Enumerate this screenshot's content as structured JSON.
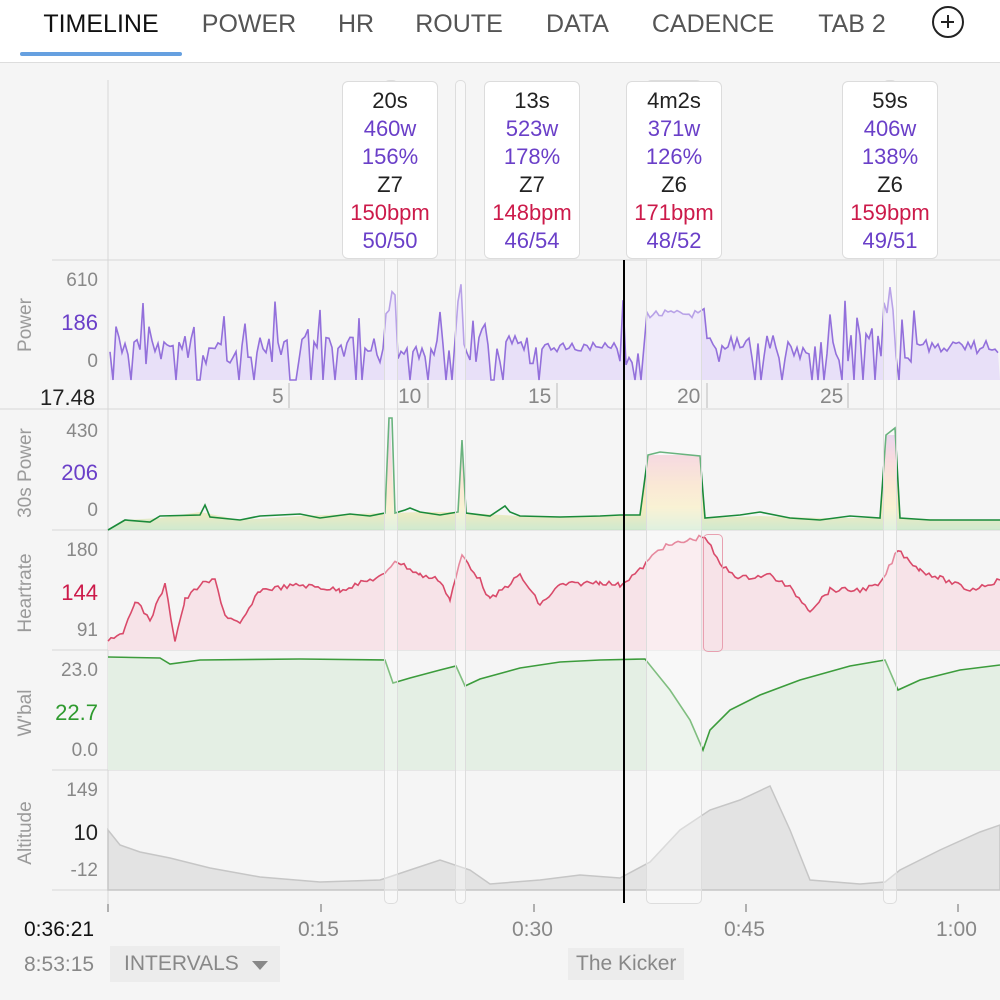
{
  "tabs": [
    "TIMELINE",
    "POWER",
    "HR",
    "ROUTE",
    "DATA",
    "CADENCE",
    "TAB 2"
  ],
  "active_tab": "TIMELINE",
  "intervals": [
    {
      "duration": "20s",
      "watts": "460w",
      "pct": "156%",
      "zone": "Z7",
      "hr": "150bpm",
      "balance": "50/50"
    },
    {
      "duration": "13s",
      "watts": "523w",
      "pct": "178%",
      "zone": "Z7",
      "hr": "148bpm",
      "balance": "46/54"
    },
    {
      "duration": "4m2s",
      "watts": "371w",
      "pct": "126%",
      "zone": "Z6",
      "hr": "171bpm",
      "balance": "48/52"
    },
    {
      "duration": "59s",
      "watts": "406w",
      "pct": "138%",
      "zone": "Z6",
      "hr": "159bpm",
      "balance": "49/51"
    }
  ],
  "panels": {
    "power": {
      "label": "Power",
      "ticks": [
        "610",
        "0"
      ],
      "current": "186"
    },
    "power30": {
      "label": "30s Power",
      "ticks": [
        "430",
        "0"
      ],
      "current": "206"
    },
    "heartrate": {
      "label": "Heartrate",
      "ticks": [
        "180",
        "91"
      ],
      "current": "144"
    },
    "wbal": {
      "label": "W'bal",
      "ticks": [
        "23.0",
        "0.0"
      ],
      "current": "22.7"
    },
    "altitude": {
      "label": "Altitude",
      "ticks": [
        "149",
        "-12"
      ],
      "current": "10"
    }
  },
  "distance_axis": {
    "current": "17.48",
    "labels": [
      "5",
      "10",
      "15",
      "20",
      "25"
    ]
  },
  "time_axis": {
    "labels": [
      "0:15",
      "0:30",
      "0:45",
      "1:00"
    ]
  },
  "bottom": {
    "elapsed": "0:36:21",
    "clock": "8:53:15",
    "intervals_button": "INTERVALS",
    "segment": "The Kicker"
  },
  "colors": {
    "power": "#9370db",
    "heartrate": "#d94a6a",
    "wbal": "#3c9c3c",
    "altitude": "#c8c8c8",
    "accent": "#66a0e0"
  }
}
